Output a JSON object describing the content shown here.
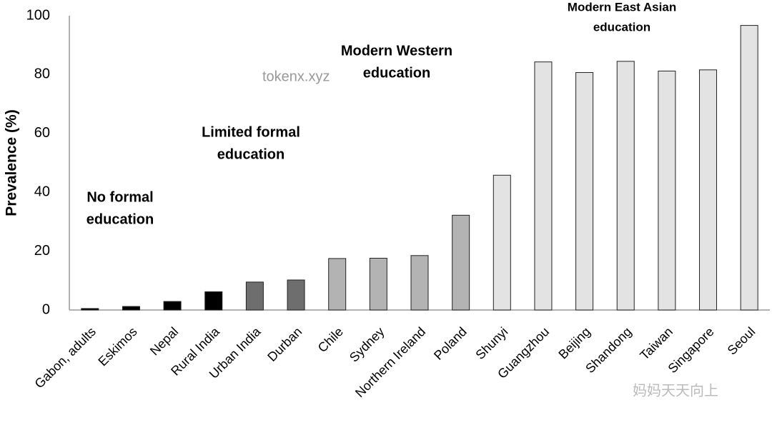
{
  "chart_data": {
    "type": "bar",
    "y_label": "Prevalence (%)",
    "categories": [
      "Gabon, adults",
      "Eskimos",
      "Nepal",
      "Rural India",
      "Urban India",
      "Durban",
      "Chile",
      "Sydney",
      "Northern Ireland",
      "Poland",
      "Shunyi",
      "Guangzhou",
      "Beijing",
      "Shandong",
      "Taiwan",
      "Singapore",
      "Seoul"
    ],
    "values": [
      0.5,
      1.2,
      2.9,
      6.2,
      9.5,
      10.2,
      17.5,
      17.6,
      18.5,
      32.2,
      45.8,
      84.3,
      80.7,
      84.5,
      81.2,
      81.6,
      96.7
    ],
    "colors": [
      "#000000",
      "#000000",
      "#000000",
      "#000000",
      "#6e6e6e",
      "#6e6e6e",
      "#b3b3b3",
      "#b3b3b3",
      "#b3b3b3",
      "#b3b3b3",
      "#e3e3e3",
      "#e3e3e3",
      "#e3e3e3",
      "#e3e3e3",
      "#e3e3e3",
      "#e3e3e3",
      "#e3e3e3"
    ],
    "ylim": [
      0,
      100
    ],
    "yticks": [
      0,
      20,
      40,
      60,
      80,
      100
    ],
    "grid": false,
    "annotations": [
      {
        "lines": [
          "No formal",
          "education"
        ]
      },
      {
        "lines": [
          "Limited formal",
          "education"
        ]
      },
      {
        "lines": [
          "Modern Western",
          "education"
        ]
      },
      {
        "lines": [
          "Modern East Asian",
          "education"
        ]
      }
    ],
    "watermarks": [
      "tokenx.xyz",
      "妈妈天天向上"
    ]
  }
}
